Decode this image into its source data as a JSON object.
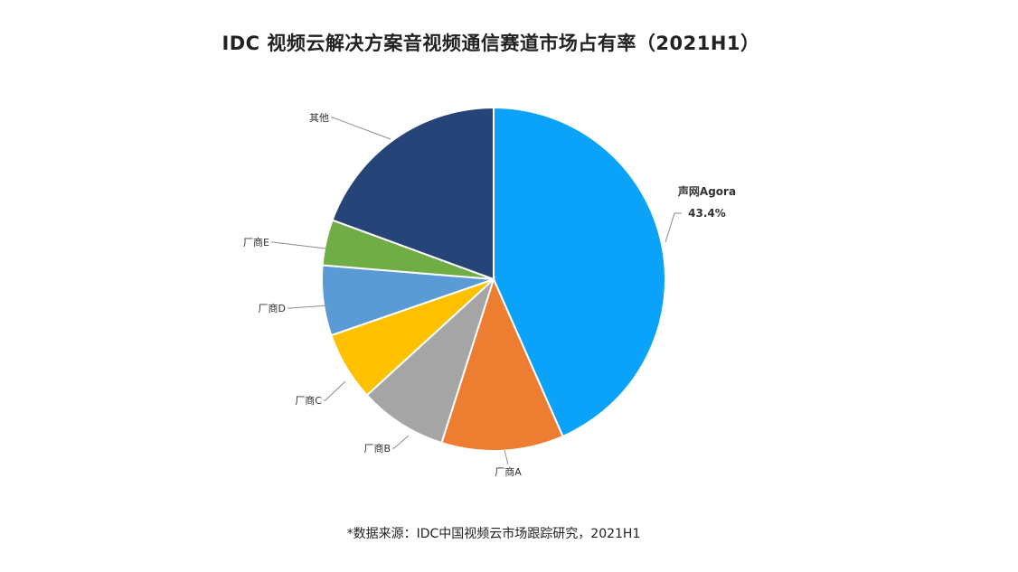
{
  "chart_data": {
    "type": "pie",
    "title": "IDC 视频云解决方案音视频通信赛道市场占有率（2021H1）",
    "slices": [
      {
        "label": "声网Agora",
        "value": 43.4,
        "value_label": "43.4%",
        "color": "#0ba3f9"
      },
      {
        "label": "厂商A",
        "value": 11.5,
        "color": "#ed7d31"
      },
      {
        "label": "厂商B",
        "value": 8.3,
        "color": "#a5a5a5"
      },
      {
        "label": "厂商C",
        "value": 6.5,
        "color": "#ffc000"
      },
      {
        "label": "厂商D",
        "value": 6.6,
        "color": "#5b9bd5"
      },
      {
        "label": "厂商E",
        "value": 4.3,
        "color": "#70ad47"
      },
      {
        "label": "其他",
        "value": 19.4,
        "color": "#264478"
      }
    ],
    "start": "12 o'clock",
    "direction": "clockwise",
    "slice_border_color": "#ffffff",
    "leader_line_color": "#8c8c8c",
    "highlight_label_color": "#0ba3f9"
  },
  "source_note": "*数据来源：IDC中国视频云市场跟踪研究，2021H1"
}
